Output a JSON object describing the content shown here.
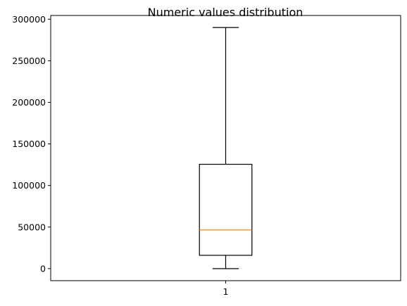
{
  "chart_data": {
    "type": "box",
    "title": "Numeric values distribution",
    "xlabel": "",
    "ylabel": "",
    "categories": [
      "1"
    ],
    "boxes": [
      {
        "category": "1",
        "whisker_low": 0,
        "q1": 16000,
        "median": 46500,
        "q3": 125500,
        "whisker_high": 290000
      }
    ],
    "ylim": [
      -14500,
      304500
    ],
    "yticks": [
      0,
      50000,
      100000,
      150000,
      200000,
      250000,
      300000
    ],
    "ytick_labels": [
      "0",
      "50000",
      "100000",
      "150000",
      "200000",
      "250000",
      "300000"
    ],
    "grid": false,
    "colors": {
      "box": "#000000",
      "median": "#ff7f0e",
      "whisker": "#000000"
    }
  }
}
